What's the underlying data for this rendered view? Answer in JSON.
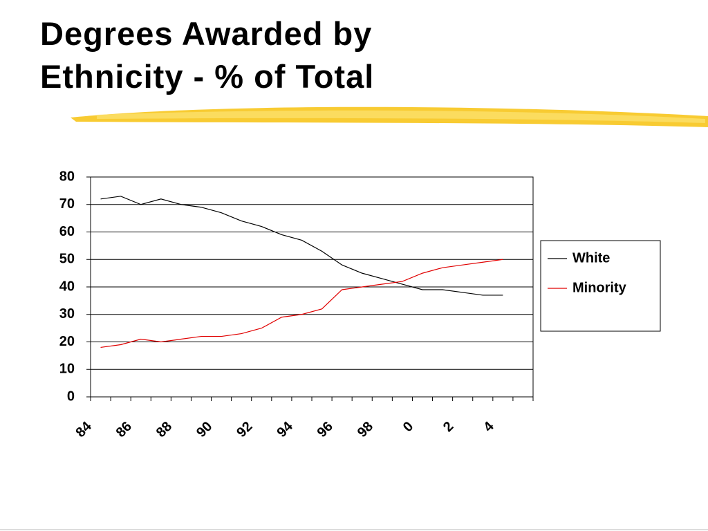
{
  "chart_data": {
    "type": "line",
    "title": "Degrees Awarded by Ethnicity - % of Total",
    "categories": [
      "84",
      null,
      "86",
      null,
      "88",
      null,
      "90",
      null,
      "92",
      null,
      "94",
      null,
      "96",
      null,
      "98",
      null,
      "0",
      null,
      "2",
      null,
      "4",
      null
    ],
    "series": [
      {
        "name": "White",
        "color": "#000000",
        "values": [
          72,
          73,
          70,
          72,
          70,
          69,
          67,
          64,
          62,
          59,
          57,
          53,
          48,
          45,
          43,
          41,
          39,
          39,
          38,
          37,
          37,
          null
        ]
      },
      {
        "name": "Minority",
        "color": "#e00000",
        "values": [
          18,
          19,
          21,
          20,
          21,
          22,
          22,
          23,
          25,
          29,
          30,
          32,
          39,
          40,
          41,
          42,
          45,
          47,
          48,
          49,
          50,
          null
        ]
      }
    ],
    "ylim": [
      0,
      80
    ],
    "yticks": [
      0,
      10,
      20,
      30,
      40,
      50,
      60,
      70,
      80
    ],
    "grid": true,
    "legend": "right"
  }
}
